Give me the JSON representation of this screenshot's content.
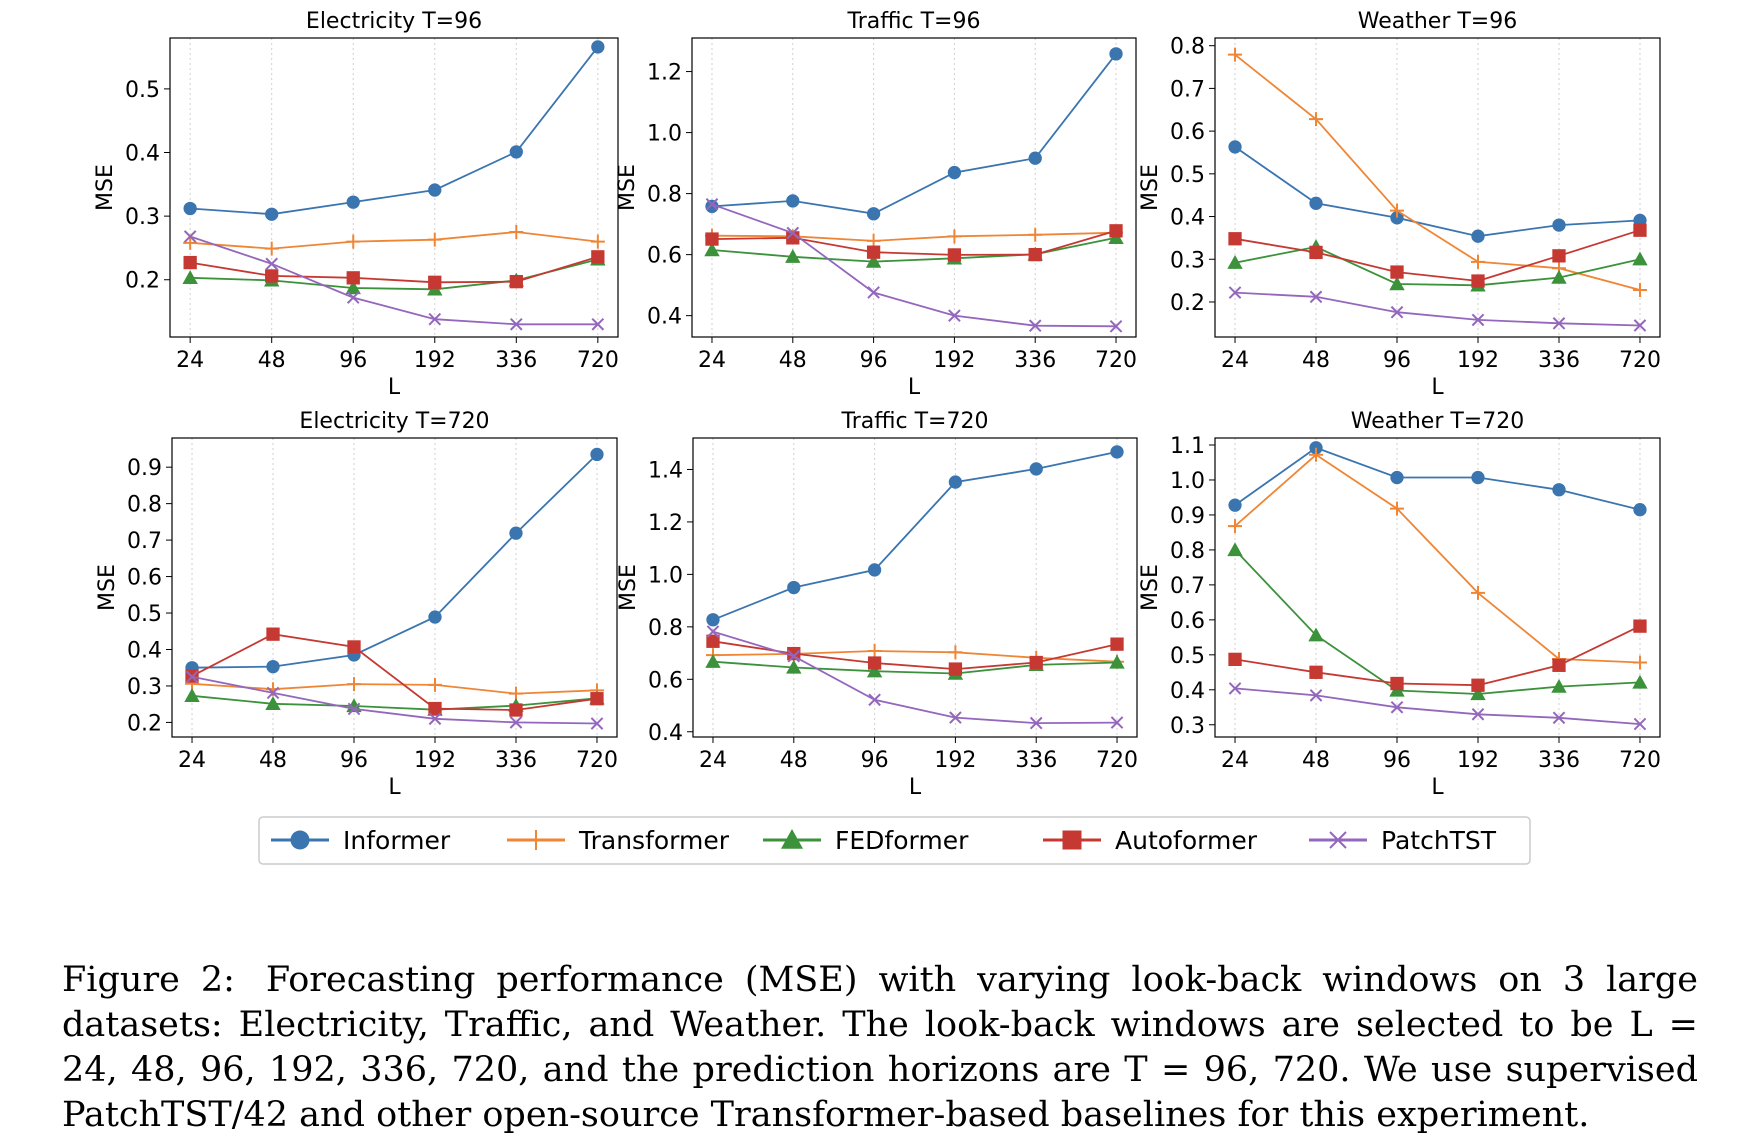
{
  "colors": {
    "Informer": "#3a75b0",
    "Transformer": "#ef8636",
    "FEDformer": "#3b923b",
    "Autoformer": "#c53932",
    "PatchTST": "#9467bd"
  },
  "legend": [
    "Informer",
    "Transformer",
    "FEDformer",
    "Autoformer",
    "PatchTST"
  ],
  "chart_data": [
    {
      "type": "line",
      "title": "Electricity T=96",
      "xlabel": "L",
      "ylabel": "MSE",
      "categories": [
        "24",
        "48",
        "96",
        "192",
        "336",
        "720"
      ],
      "ylim": [
        0.11,
        0.58
      ],
      "yticks": [
        0.2,
        0.3,
        0.4,
        0.5
      ],
      "series": [
        {
          "name": "Informer",
          "values": [
            0.312,
            0.303,
            0.322,
            0.341,
            0.401,
            0.566
          ]
        },
        {
          "name": "Transformer",
          "values": [
            0.258,
            0.249,
            0.26,
            0.263,
            0.275,
            0.26
          ]
        },
        {
          "name": "FEDformer",
          "values": [
            0.203,
            0.199,
            0.187,
            0.185,
            0.199,
            0.232
          ]
        },
        {
          "name": "Autoformer",
          "values": [
            0.227,
            0.206,
            0.203,
            0.196,
            0.197,
            0.236
          ]
        },
        {
          "name": "PatchTST",
          "values": [
            0.268,
            0.225,
            0.172,
            0.138,
            0.13,
            0.13
          ]
        }
      ]
    },
    {
      "type": "line",
      "title": "Traffic T=96",
      "xlabel": "L",
      "ylabel": "MSE",
      "categories": [
        "24",
        "48",
        "96",
        "192",
        "336",
        "720"
      ],
      "ylim": [
        0.33,
        1.31
      ],
      "yticks": [
        0.4,
        0.6,
        0.8,
        1.0,
        1.2
      ],
      "series": [
        {
          "name": "Informer",
          "values": [
            0.758,
            0.776,
            0.734,
            0.869,
            0.916,
            1.258
          ]
        },
        {
          "name": "Transformer",
          "values": [
            0.662,
            0.66,
            0.645,
            0.66,
            0.665,
            0.672
          ]
        },
        {
          "name": "FEDformer",
          "values": [
            0.615,
            0.593,
            0.577,
            0.588,
            0.601,
            0.655
          ]
        },
        {
          "name": "Autoformer",
          "values": [
            0.651,
            0.655,
            0.608,
            0.599,
            0.6,
            0.678
          ]
        },
        {
          "name": "PatchTST",
          "values": [
            0.765,
            0.671,
            0.476,
            0.4,
            0.367,
            0.365
          ]
        }
      ]
    },
    {
      "type": "line",
      "title": "Weather T=96",
      "xlabel": "L",
      "ylabel": "MSE",
      "categories": [
        "24",
        "48",
        "96",
        "192",
        "336",
        "720"
      ],
      "ylim": [
        0.118,
        0.818
      ],
      "yticks": [
        0.2,
        0.3,
        0.4,
        0.5,
        0.6,
        0.7,
        0.8
      ],
      "series": [
        {
          "name": "Informer",
          "values": [
            0.563,
            0.431,
            0.397,
            0.354,
            0.38,
            0.391
          ]
        },
        {
          "name": "Transformer",
          "values": [
            0.779,
            0.628,
            0.414,
            0.294,
            0.279,
            0.228
          ]
        },
        {
          "name": "FEDformer",
          "values": [
            0.292,
            0.329,
            0.242,
            0.239,
            0.257,
            0.3
          ]
        },
        {
          "name": "Autoformer",
          "values": [
            0.348,
            0.316,
            0.27,
            0.249,
            0.308,
            0.368
          ]
        },
        {
          "name": "PatchTST",
          "values": [
            0.222,
            0.212,
            0.176,
            0.158,
            0.15,
            0.145
          ]
        }
      ]
    },
    {
      "type": "line",
      "title": "Electricity T=720",
      "xlabel": "L",
      "ylabel": "MSE",
      "categories": [
        "24",
        "48",
        "96",
        "192",
        "336",
        "720"
      ],
      "ylim": [
        0.16,
        0.98
      ],
      "yticks": [
        0.2,
        0.3,
        0.4,
        0.5,
        0.6,
        0.7,
        0.8,
        0.9
      ],
      "series": [
        {
          "name": "Informer",
          "values": [
            0.35,
            0.353,
            0.385,
            0.489,
            0.719,
            0.935
          ]
        },
        {
          "name": "Transformer",
          "values": [
            0.306,
            0.291,
            0.305,
            0.303,
            0.279,
            0.288
          ]
        },
        {
          "name": "FEDformer",
          "values": [
            0.273,
            0.251,
            0.245,
            0.235,
            0.246,
            0.266
          ]
        },
        {
          "name": "Autoformer",
          "values": [
            0.327,
            0.442,
            0.407,
            0.238,
            0.234,
            0.265
          ]
        },
        {
          "name": "PatchTST",
          "values": [
            0.325,
            0.281,
            0.237,
            0.21,
            0.2,
            0.197
          ]
        }
      ]
    },
    {
      "type": "line",
      "title": "Traffic T=720",
      "xlabel": "L",
      "ylabel": "MSE",
      "categories": [
        "24",
        "48",
        "96",
        "192",
        "336",
        "720"
      ],
      "ylim": [
        0.38,
        1.52
      ],
      "yticks": [
        0.4,
        0.6,
        0.8,
        1.0,
        1.2,
        1.4
      ],
      "series": [
        {
          "name": "Informer",
          "values": [
            0.827,
            0.95,
            1.017,
            1.352,
            1.402,
            1.467
          ]
        },
        {
          "name": "Transformer",
          "values": [
            0.692,
            0.697,
            0.708,
            0.703,
            0.682,
            0.667
          ]
        },
        {
          "name": "FEDformer",
          "values": [
            0.667,
            0.645,
            0.631,
            0.622,
            0.655,
            0.664
          ]
        },
        {
          "name": "Autoformer",
          "values": [
            0.745,
            0.698,
            0.662,
            0.639,
            0.664,
            0.734
          ]
        },
        {
          "name": "PatchTST",
          "values": [
            0.782,
            0.688,
            0.522,
            0.454,
            0.433,
            0.435
          ]
        }
      ]
    },
    {
      "type": "line",
      "title": "Weather T=720",
      "xlabel": "L",
      "ylabel": "MSE",
      "categories": [
        "24",
        "48",
        "96",
        "192",
        "336",
        "720"
      ],
      "ylim": [
        0.265,
        1.12
      ],
      "yticks": [
        0.3,
        0.4,
        0.5,
        0.6,
        0.7,
        0.8,
        0.9,
        1.0,
        1.1
      ],
      "series": [
        {
          "name": "Informer",
          "values": [
            0.928,
            1.092,
            1.007,
            1.007,
            0.972,
            0.915
          ]
        },
        {
          "name": "Transformer",
          "values": [
            0.868,
            1.072,
            0.918,
            0.677,
            0.488,
            0.478
          ]
        },
        {
          "name": "FEDformer",
          "values": [
            0.8,
            0.556,
            0.398,
            0.388,
            0.409,
            0.421
          ]
        },
        {
          "name": "Autoformer",
          "values": [
            0.487,
            0.45,
            0.418,
            0.413,
            0.47,
            0.582
          ]
        },
        {
          "name": "PatchTST",
          "values": [
            0.404,
            0.384,
            0.35,
            0.33,
            0.32,
            0.302
          ]
        }
      ]
    }
  ],
  "caption": {
    "label": "Figure 2:",
    "text": "Forecasting performance (MSE) with varying look-back windows on 3 large datasets: Electricity, Traffic, and Weather. The look-back windows are selected to be L = 24, 48, 96, 192, 336, 720, and the prediction horizons are T = 96, 720. We use supervised PatchTST/42 and other open-source Transformer-based baselines for this experiment."
  }
}
